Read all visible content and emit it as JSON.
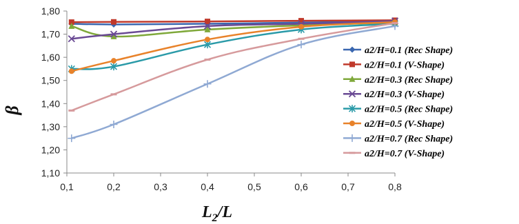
{
  "chart_data": {
    "type": "line",
    "xlabel": "L",
    "xlabel_sub": "2",
    "xlabel_tail": "/L",
    "ylabel": "β",
    "xlim": [
      0.1,
      0.8
    ],
    "ylim": [
      1.1,
      1.8
    ],
    "x_ticks": [
      "0,1",
      "0,2",
      "0,3",
      "0,4",
      "0,5",
      "0,6",
      "0,7",
      "0,8"
    ],
    "y_ticks": [
      "1,10",
      "1,20",
      "1,30",
      "1,40",
      "1,50",
      "1,60",
      "1,70",
      "1,80"
    ],
    "grid": false,
    "legend_position": "right",
    "x": [
      0.11,
      0.2,
      0.4,
      0.6,
      0.8
    ],
    "series": [
      {
        "name": "a2/H=0.1 (Rec Shape)",
        "color": "#3a67b0",
        "marker": "diamond",
        "values": [
          1.745,
          1.742,
          1.745,
          1.75,
          1.757
        ]
      },
      {
        "name": "a2/H=0.1 (V-Shape)",
        "color": "#c0392b",
        "marker": "square",
        "values": [
          1.752,
          1.753,
          1.755,
          1.758,
          1.76
        ]
      },
      {
        "name": "a2/H=0.3 (Rec Shape)",
        "color": "#7fa83a",
        "marker": "triangle",
        "values": [
          1.735,
          1.69,
          1.72,
          1.738,
          1.75
        ]
      },
      {
        "name": "a2/H=0.3 (V-Shape)",
        "color": "#6a4a94",
        "marker": "x",
        "values": [
          1.68,
          1.7,
          1.735,
          1.745,
          1.757
        ]
      },
      {
        "name": "a2/H=0.5 (Rec Shape)",
        "color": "#2a9aa8",
        "marker": "asterisk",
        "values": [
          1.55,
          1.56,
          1.655,
          1.72,
          1.745
        ]
      },
      {
        "name": "a2/H=0.5 (V-Shape)",
        "color": "#e8822a",
        "marker": "circle",
        "values": [
          1.54,
          1.585,
          1.677,
          1.732,
          1.752
        ]
      },
      {
        "name": "a2/H=0.7 (Rec Shape)",
        "color": "#8fa9d3",
        "marker": "plus",
        "values": [
          1.25,
          1.31,
          1.485,
          1.655,
          1.735
        ]
      },
      {
        "name": "a2/H=0.7 (V-Shape)",
        "color": "#d69a9c",
        "marker": "dash",
        "values": [
          1.37,
          1.44,
          1.59,
          1.68,
          1.748
        ]
      }
    ]
  }
}
